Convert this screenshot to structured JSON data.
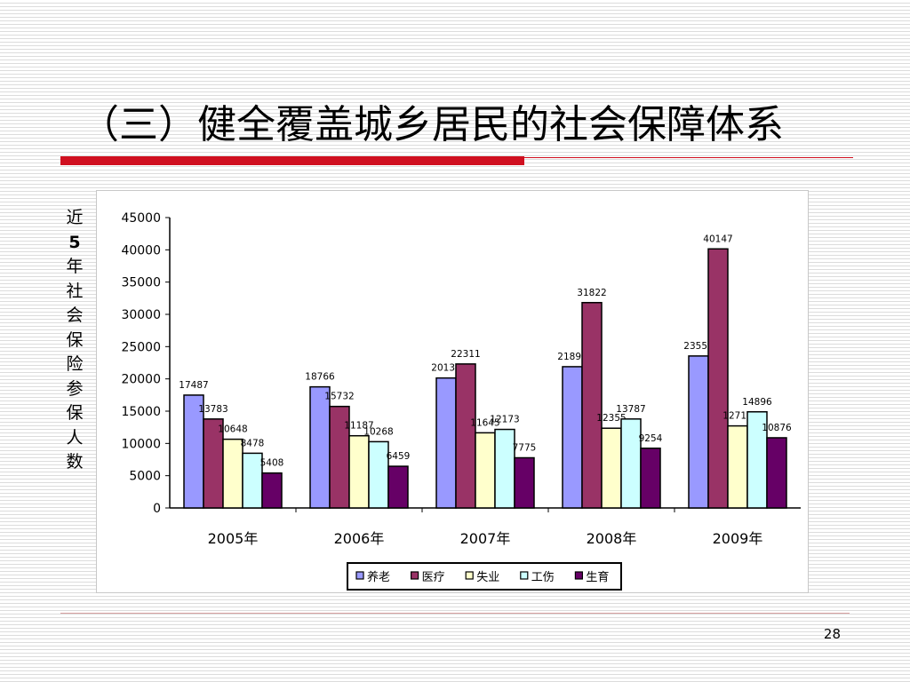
{
  "slide": {
    "title": "（三）健全覆盖城乡居民的社会保障体系",
    "page_number": "28",
    "ylabel_chars": [
      "近",
      "5",
      "年",
      "社",
      "会",
      "保",
      "险",
      "参",
      "保",
      "人",
      "数"
    ]
  },
  "chart_data": {
    "type": "bar",
    "title": "",
    "xlabel": "",
    "ylabel": "近5年社会保险参保人数",
    "ylim": [
      0,
      45000
    ],
    "yticks": [
      "45000",
      "40000",
      "35000",
      "30000",
      "25000",
      "20000",
      "15000",
      "10000",
      "5000",
      "0"
    ],
    "categories": [
      "2005年",
      "2006年",
      "2007年",
      "2008年",
      "2009年"
    ],
    "series": [
      {
        "name": "养老",
        "color": "#9999ff",
        "values": [
          17487,
          18766,
          20137,
          21891,
          23550
        ]
      },
      {
        "name": "医疗",
        "color": "#993366",
        "values": [
          13783,
          15732,
          22311,
          31822,
          40147
        ]
      },
      {
        "name": "失业",
        "color": "#ffffcc",
        "values": [
          10648,
          11187,
          11645,
          12355,
          12715
        ]
      },
      {
        "name": "工伤",
        "color": "#ccffff",
        "values": [
          8478,
          10268,
          12173,
          13787,
          14896
        ]
      },
      {
        "name": "生育",
        "color": "#660066",
        "values": [
          5408,
          6459,
          7775,
          9254,
          10876
        ]
      }
    ],
    "legend_position": "bottom",
    "grid": false
  },
  "colors": {
    "title_bar": "#d01020",
    "background_stripes": "#dcdcdc"
  }
}
